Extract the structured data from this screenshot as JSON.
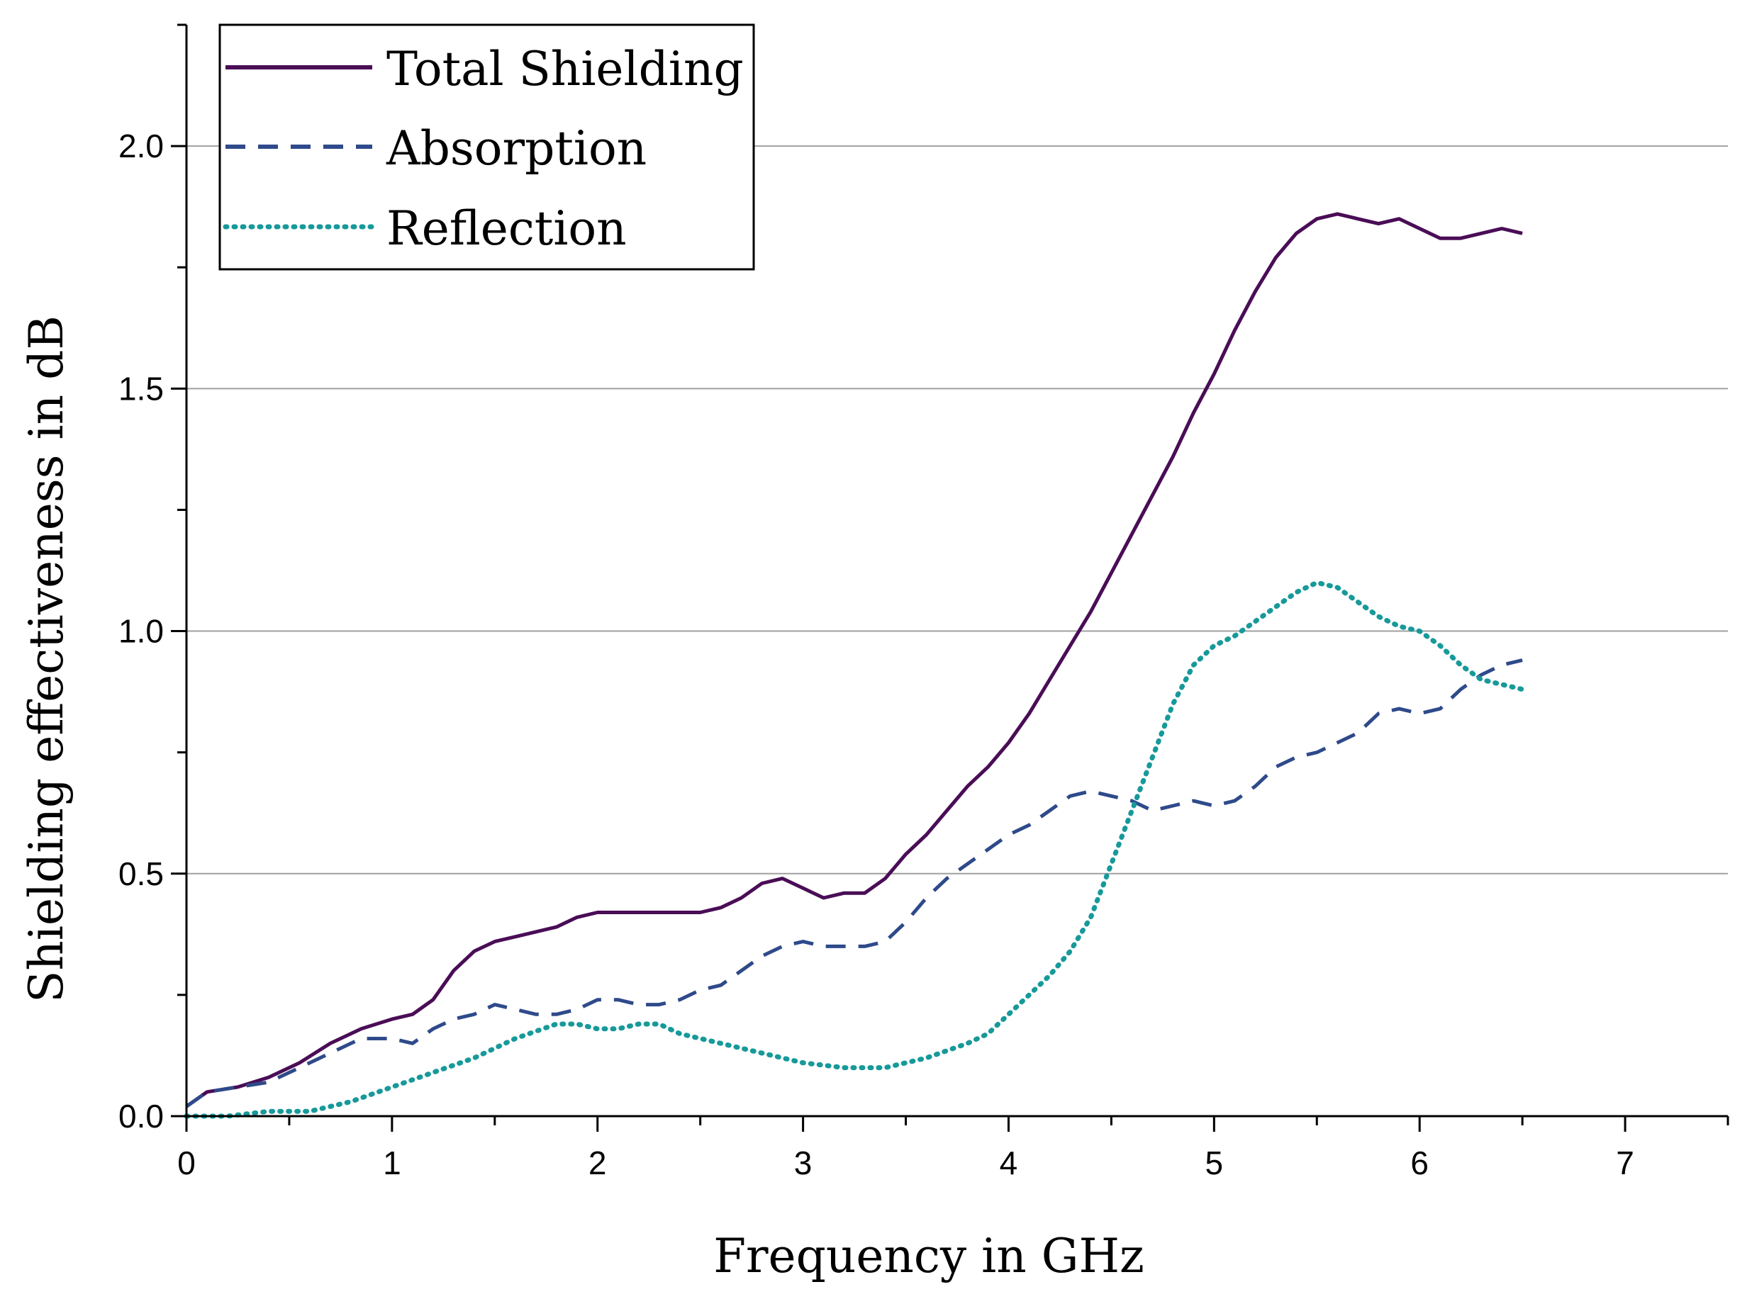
{
  "chart_data": {
    "type": "line",
    "title": "",
    "xlabel": "Frequency in GHz",
    "ylabel": "Shielding effectiveness in dB",
    "xlim": [
      0,
      7.5
    ],
    "ylim": [
      0,
      2.25
    ],
    "xticks": [
      0,
      1,
      2,
      3,
      4,
      5,
      6,
      7
    ],
    "xtick_labels": [
      "0",
      "1",
      "2",
      "3",
      "4",
      "5",
      "6",
      "7"
    ],
    "yticks": [
      0,
      0.5,
      1.0,
      1.5,
      2.0
    ],
    "ytick_labels": [
      "0.0",
      "0.5",
      "1.0",
      "1.5",
      "2.0"
    ],
    "grid": "horizontal",
    "legend_position": "top-left",
    "series": [
      {
        "name": "Total Shielding",
        "color": "#4a0d56",
        "style": "solid",
        "x": [
          0,
          0.1,
          0.25,
          0.4,
          0.55,
          0.7,
          0.85,
          1.0,
          1.1,
          1.2,
          1.3,
          1.4,
          1.5,
          1.6,
          1.7,
          1.8,
          1.9,
          2.0,
          2.1,
          2.2,
          2.3,
          2.4,
          2.5,
          2.6,
          2.7,
          2.8,
          2.9,
          3.0,
          3.1,
          3.2,
          3.3,
          3.4,
          3.5,
          3.6,
          3.7,
          3.8,
          3.9,
          4.0,
          4.1,
          4.2,
          4.3,
          4.4,
          4.5,
          4.6,
          4.7,
          4.8,
          4.9,
          5.0,
          5.1,
          5.2,
          5.3,
          5.4,
          5.5,
          5.6,
          5.7,
          5.8,
          5.9,
          6.0,
          6.1,
          6.2,
          6.3,
          6.4,
          6.5
        ],
        "y": [
          0.02,
          0.05,
          0.06,
          0.08,
          0.11,
          0.15,
          0.18,
          0.2,
          0.21,
          0.24,
          0.3,
          0.34,
          0.36,
          0.37,
          0.38,
          0.39,
          0.41,
          0.42,
          0.42,
          0.42,
          0.42,
          0.42,
          0.42,
          0.43,
          0.45,
          0.48,
          0.49,
          0.47,
          0.45,
          0.46,
          0.46,
          0.49,
          0.54,
          0.58,
          0.63,
          0.68,
          0.72,
          0.77,
          0.83,
          0.9,
          0.97,
          1.04,
          1.12,
          1.2,
          1.28,
          1.36,
          1.45,
          1.53,
          1.62,
          1.7,
          1.77,
          1.82,
          1.85,
          1.86,
          1.85,
          1.84,
          1.85,
          1.83,
          1.81,
          1.81,
          1.82,
          1.83,
          1.82
        ]
      },
      {
        "name": "Absorption",
        "color": "#2e4a8a",
        "style": "dashed",
        "x": [
          0,
          0.1,
          0.25,
          0.4,
          0.55,
          0.7,
          0.85,
          1.0,
          1.1,
          1.2,
          1.3,
          1.4,
          1.5,
          1.6,
          1.7,
          1.8,
          1.9,
          2.0,
          2.1,
          2.2,
          2.3,
          2.4,
          2.5,
          2.6,
          2.7,
          2.8,
          2.9,
          3.0,
          3.1,
          3.2,
          3.3,
          3.4,
          3.5,
          3.6,
          3.7,
          3.8,
          3.9,
          4.0,
          4.1,
          4.2,
          4.3,
          4.4,
          4.5,
          4.6,
          4.7,
          4.8,
          4.9,
          5.0,
          5.1,
          5.2,
          5.3,
          5.4,
          5.5,
          5.6,
          5.7,
          5.8,
          5.9,
          6.0,
          6.1,
          6.2,
          6.3,
          6.4,
          6.5
        ],
        "y": [
          0.02,
          0.05,
          0.06,
          0.07,
          0.1,
          0.13,
          0.16,
          0.16,
          0.15,
          0.18,
          0.2,
          0.21,
          0.23,
          0.22,
          0.21,
          0.21,
          0.22,
          0.24,
          0.24,
          0.23,
          0.23,
          0.24,
          0.26,
          0.27,
          0.3,
          0.33,
          0.35,
          0.36,
          0.35,
          0.35,
          0.35,
          0.36,
          0.4,
          0.45,
          0.49,
          0.52,
          0.55,
          0.58,
          0.6,
          0.63,
          0.66,
          0.67,
          0.66,
          0.65,
          0.63,
          0.64,
          0.65,
          0.64,
          0.65,
          0.68,
          0.72,
          0.74,
          0.75,
          0.77,
          0.79,
          0.83,
          0.84,
          0.83,
          0.84,
          0.88,
          0.91,
          0.93,
          0.94
        ]
      },
      {
        "name": "Reflection",
        "color": "#17999a",
        "style": "dotted",
        "x": [
          0,
          0.2,
          0.4,
          0.6,
          0.8,
          1.0,
          1.2,
          1.4,
          1.6,
          1.8,
          1.9,
          2.0,
          2.1,
          2.2,
          2.3,
          2.4,
          2.6,
          2.8,
          3.0,
          3.2,
          3.4,
          3.6,
          3.8,
          3.9,
          4.0,
          4.1,
          4.2,
          4.3,
          4.4,
          4.5,
          4.6,
          4.7,
          4.8,
          4.9,
          5.0,
          5.1,
          5.2,
          5.3,
          5.4,
          5.5,
          5.6,
          5.7,
          5.8,
          5.9,
          6.0,
          6.1,
          6.2,
          6.3,
          6.4,
          6.5
        ],
        "y": [
          0.0,
          0.0,
          0.01,
          0.01,
          0.03,
          0.06,
          0.09,
          0.12,
          0.16,
          0.19,
          0.19,
          0.18,
          0.18,
          0.19,
          0.19,
          0.17,
          0.15,
          0.13,
          0.11,
          0.1,
          0.1,
          0.12,
          0.15,
          0.17,
          0.21,
          0.25,
          0.29,
          0.34,
          0.41,
          0.52,
          0.63,
          0.74,
          0.85,
          0.93,
          0.97,
          0.99,
          1.02,
          1.05,
          1.08,
          1.1,
          1.09,
          1.06,
          1.03,
          1.01,
          1.0,
          0.97,
          0.93,
          0.9,
          0.89,
          0.88
        ]
      }
    ]
  }
}
